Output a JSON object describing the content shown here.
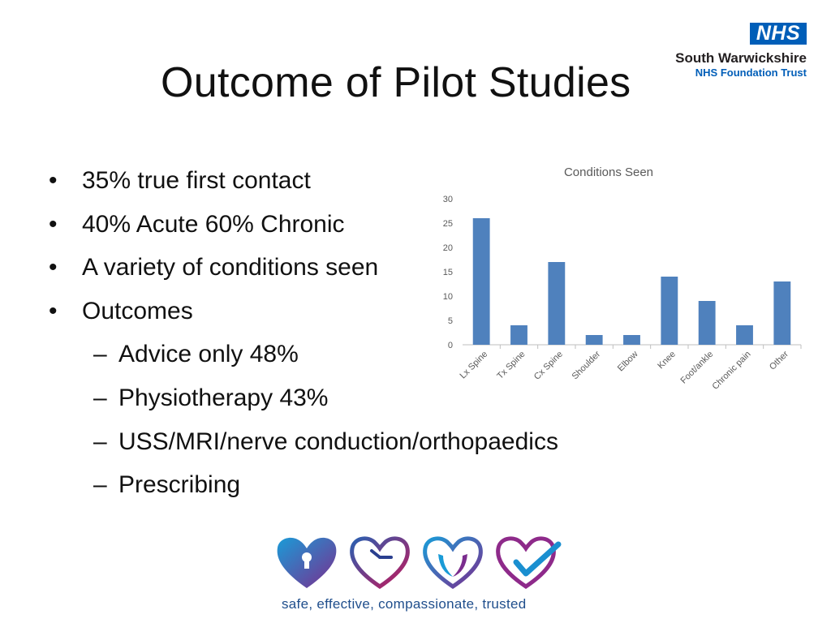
{
  "slide": {
    "title": "Outcome of Pilot Studies"
  },
  "logo": {
    "badge": "NHS",
    "org": "South Warwickshire",
    "trust": "NHS Foundation Trust",
    "brand_color": "#005eb8"
  },
  "bullets": [
    {
      "level": 1,
      "text": "35% true first contact"
    },
    {
      "level": 1,
      "text": "40% Acute  60% Chronic"
    },
    {
      "level": 1,
      "text": "A variety of conditions seen"
    },
    {
      "level": 1,
      "text": "Outcomes"
    },
    {
      "level": 2,
      "text": "Advice only 48%"
    },
    {
      "level": 2,
      "text": "Physiotherapy  43%"
    },
    {
      "level": 2,
      "text": "USS/MRI/nerve conduction/orthopaedics"
    },
    {
      "level": 2,
      "text": "Prescribing"
    }
  ],
  "chart_data": {
    "type": "bar",
    "title": "Conditions Seen",
    "categories": [
      "Lx Spine",
      "Tx Spine",
      "Cx Spine",
      "Shoulder",
      "Elbow",
      "Knee",
      "Foot/ankle",
      "Chronic pain",
      "Other"
    ],
    "values": [
      26,
      4,
      17,
      2,
      2,
      14,
      9,
      4,
      13
    ],
    "ylim": [
      0,
      30
    ],
    "yticks": [
      0,
      5,
      10,
      15,
      20,
      25,
      30
    ],
    "xlabel": "",
    "ylabel": "",
    "grid": false,
    "legend": "none",
    "bar_color": "#4f81bd"
  },
  "footer": {
    "tagline": "safe, effective, compassionate, trusted",
    "icons": [
      "heart-lock-icon",
      "heart-clock-icon",
      "heart-hands-icon",
      "heart-check-icon"
    ]
  }
}
